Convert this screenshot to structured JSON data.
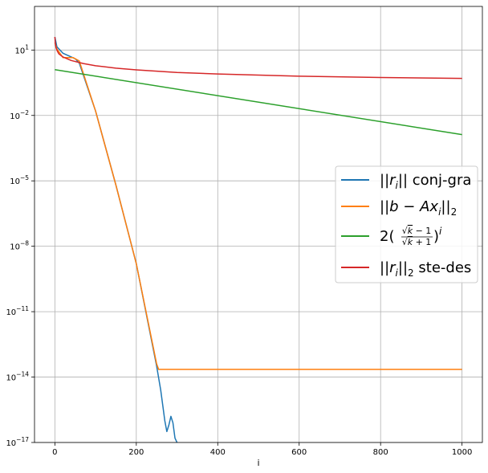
{
  "chart_data": {
    "type": "line",
    "title": "",
    "xlabel": "i",
    "ylabel": "",
    "xlim": [
      -50,
      1050
    ],
    "ylim_exp": [
      -17,
      3
    ],
    "yscale": "log",
    "grid": true,
    "legend_position": "center-right",
    "x_ticks": [
      0,
      200,
      400,
      600,
      800,
      1000
    ],
    "x_tick_labels": [
      "0",
      "200",
      "400",
      "600",
      "800",
      "1000"
    ],
    "y_ticks_exp": [
      1,
      -2,
      -5,
      -8,
      -11,
      -14,
      -17
    ],
    "y_tick_labels": [
      {
        "base": "10",
        "exp": "1"
      },
      {
        "base": "10",
        "exp": "−2"
      },
      {
        "base": "10",
        "exp": "−5"
      },
      {
        "base": "10",
        "exp": "−8"
      },
      {
        "base": "10",
        "exp": "−11"
      },
      {
        "base": "10",
        "exp": "−14"
      },
      {
        "base": "10",
        "exp": "−17"
      }
    ],
    "series": [
      {
        "name": "||r_i|| conj-gra",
        "color": "#1f77b4",
        "x": [
          0,
          5,
          20,
          50,
          60,
          100,
          150,
          200,
          250,
          260,
          270,
          275,
          280,
          285,
          290,
          295,
          300,
          302
        ],
        "log10y": [
          1.6,
          1.15,
          0.85,
          0.6,
          0.4,
          -1.8,
          -5.2,
          -8.8,
          -13.5,
          -14.6,
          -16.0,
          -16.5,
          -16.2,
          -15.8,
          -16.1,
          -16.8,
          -17.0,
          -17.2
        ]
      },
      {
        "name": "||b − Ax_i||_2",
        "color": "#ff7f0e",
        "x": [
          0,
          5,
          20,
          45,
          60,
          100,
          150,
          200,
          250,
          255,
          260,
          300,
          1000
        ],
        "log10y": [
          1.35,
          1.05,
          0.65,
          0.65,
          0.5,
          -1.8,
          -5.2,
          -8.8,
          -13.4,
          -13.65,
          -13.65,
          -13.65,
          -13.65
        ],
        "plateau_note": "≈ 2.2e-14"
      },
      {
        "name": "2(√k − 1 / √k + 1)^i",
        "color": "#2ca02c",
        "x": [
          0,
          1000
        ],
        "log10y": [
          0.1,
          -2.88
        ]
      },
      {
        "name": "||r_i||_2 ste-des",
        "color": "#d62728",
        "x": [
          0,
          1,
          3,
          6,
          10,
          20,
          40,
          70,
          100,
          150,
          200,
          300,
          400,
          600,
          800,
          1000
        ],
        "log10y": [
          1.6,
          1.3,
          1.1,
          0.95,
          0.82,
          0.68,
          0.52,
          0.38,
          0.28,
          0.17,
          0.09,
          -0.03,
          -0.1,
          -0.2,
          -0.26,
          -0.3
        ]
      }
    ]
  }
}
